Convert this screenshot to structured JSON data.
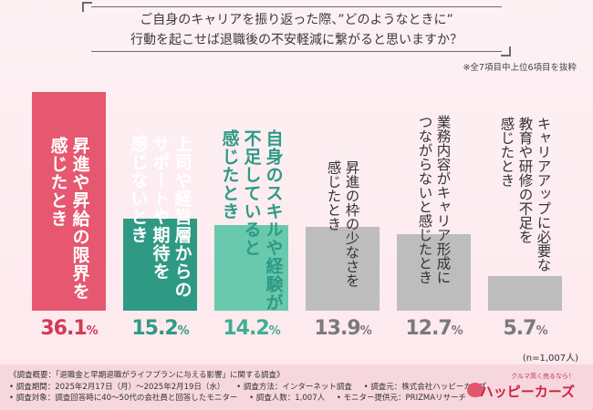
{
  "header": {
    "question_line1": "ご自身のキャリアを振り返った際、”どのようなときに”",
    "question_line2": "行動を起こせば退職後の不安軽減に繋がると思いますか？",
    "note": "※全7項目中上位6項目を抜粋"
  },
  "chart_data": {
    "type": "bar",
    "title": "ご自身のキャリアを振り返った際、”どのようなときに”行動を起こせば退職後の不安軽減に繋がると思いますか？",
    "unit": "%",
    "ylim": [
      0,
      40
    ],
    "categories": [
      "昇進や昇給の限界を感じたとき",
      "上司や経営層からのサポートや期待を感じないとき",
      "自身のスキルや経験が不足していると感じたとき",
      "昇進の枠の少なさを感じたとき",
      "業務内容がキャリア形成につながらないと感じたとき",
      "キャリアアップに必要な教育や研修の不足を感じたとき"
    ],
    "values": [
      36.1,
      15.2,
      14.2,
      13.9,
      12.7,
      5.7
    ],
    "value_labels": [
      "36.1",
      "15.2",
      "14.2",
      "13.9",
      "12.7",
      "5.7"
    ],
    "label_lines": [
      [
        "昇進や昇給の限界を",
        "感じたとき"
      ],
      [
        "上司や経営層からの",
        "サポートや期待を",
        "感じないとき"
      ],
      [
        "自身のスキルや経験が",
        "不足していると",
        "感じたとき"
      ],
      [
        "昇進の枠の少なさを",
        "感じたとき"
      ],
      [
        "業務内容がキャリア形成に",
        "つながらないと感じたとき"
      ],
      [
        "キャリアアップに必要な",
        "教育や研修の不足を",
        "感じたとき"
      ]
    ],
    "colors": [
      "#e5586f",
      "#2f9a84",
      "#69c9ad",
      "#bdbdbd",
      "#bdbdbd",
      "#bdbdbd"
    ],
    "value_colors": [
      "#d23a56",
      "#2f9a84",
      "#3fae91",
      "#7a7a7a",
      "#7a7a7a",
      "#7a7a7a"
    ],
    "label_colors": [
      "#ffffff",
      "#ffffff",
      "#2f9a84",
      "#333333",
      "#333333",
      "#333333"
    ],
    "sample": "(n=1,007人)"
  },
  "footer": {
    "survey_overview": "《調査概要：「退職金と早期退職がライフプランに与える影響」に関する調査》",
    "period": "• 調査期間：2025年2月17日（月）〜2025年2月19日（水）",
    "method": "• 調査方法：インターネット調査",
    "sponsor": "• 調査元：株式会社ハッピーカーズ",
    "target": "• 調査対象：調査回答時に40〜50代の会社員と回答したモニター",
    "count": "• 調査人数：1,007人",
    "provider": "• モニター提供元：PRIZMAリサーチ"
  },
  "logo": {
    "tagline": "クルマ高く売るなら！",
    "name": "ハッピーカーズ"
  }
}
